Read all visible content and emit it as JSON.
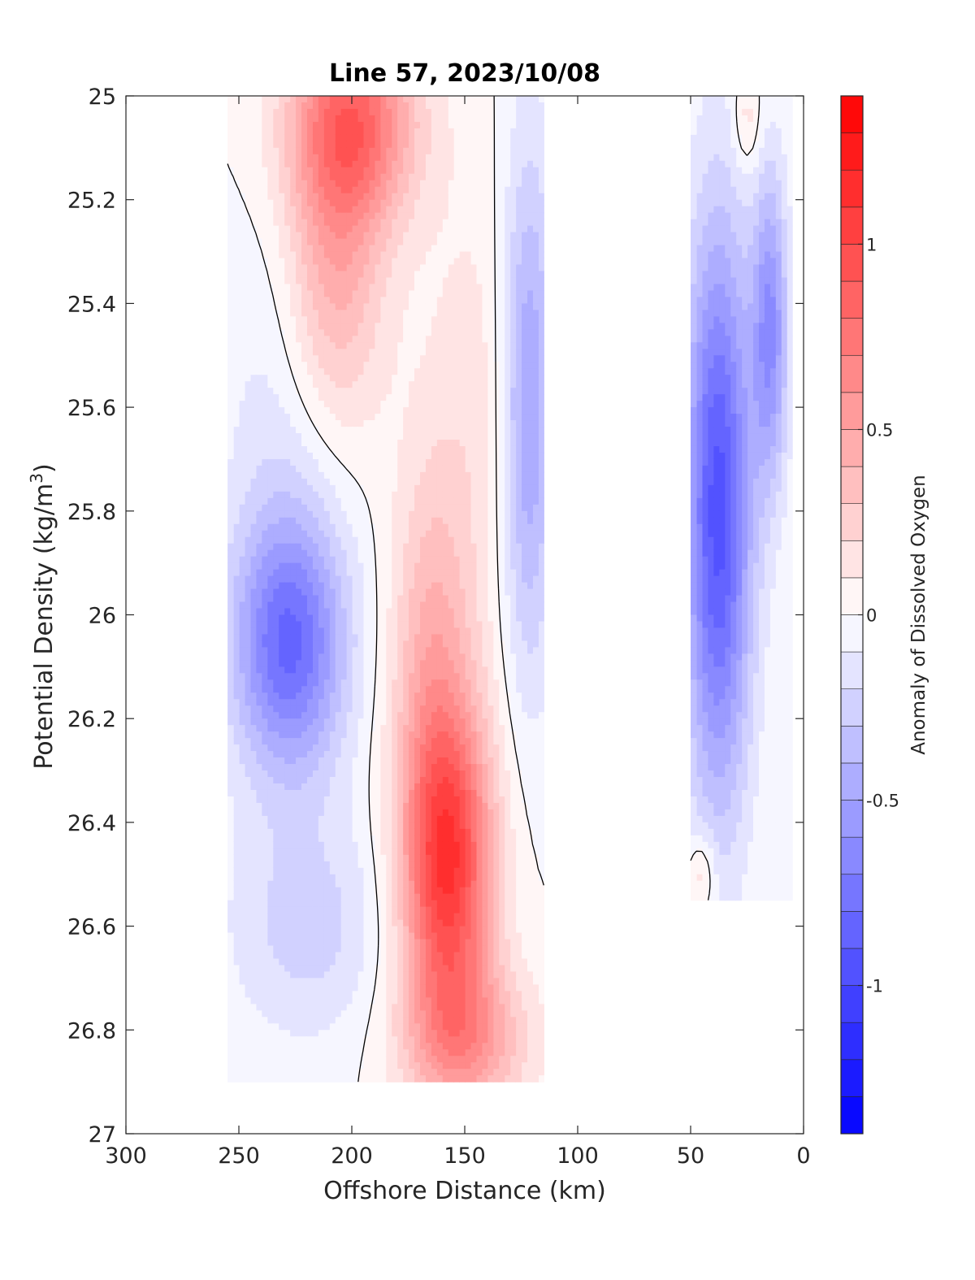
{
  "chart_data": {
    "type": "contour",
    "title": "Line 57, 2023/10/08",
    "xlabel": "Offshore Distance (km)",
    "ylabel_main": "Potential Density (kg/m",
    "ylabel_sup": "3",
    "ylabel_close": ")",
    "xlim": [
      300,
      0
    ],
    "x_reversed": true,
    "ylim": [
      25,
      27
    ],
    "y_reversed": true,
    "x_ticks": [
      300,
      250,
      200,
      150,
      100,
      50,
      0
    ],
    "x_tick_labels": [
      "300",
      "250",
      "200",
      "150",
      "100",
      "50",
      "0"
    ],
    "y_ticks": [
      25,
      25.2,
      25.4,
      25.6,
      25.8,
      26,
      26.2,
      26.4,
      26.6,
      26.8,
      27
    ],
    "y_tick_labels": [
      "25",
      "25.2",
      "25.4",
      "25.6",
      "25.8",
      "26",
      "26.2",
      "26.4",
      "26.6",
      "26.8",
      "27"
    ],
    "colorbar": {
      "label": "Anomaly of Dissolved Oxygen",
      "range": [
        -1.4,
        1.4
      ],
      "ticks": [
        -1,
        -0.5,
        0,
        0.5,
        1
      ],
      "tick_labels": [
        "-1",
        "-0.5",
        "0",
        "0.5",
        "1"
      ],
      "levels": 28,
      "colormap": "blue-white-red",
      "color_min": "#0000ff",
      "color_mid": "#ffffff",
      "color_max": "#ff0000"
    },
    "zero_contour_color": "#000000",
    "data_columns": [
      {
        "x_range": [
          115,
          255
        ],
        "y_range": [
          25,
          26.9
        ]
      },
      {
        "x_range": [
          5,
          50
        ],
        "y_range": [
          25,
          26.55
        ]
      }
    ],
    "features": [
      {
        "kind": "max",
        "x": 200,
        "y": 25.05,
        "value": 0.8,
        "rx": 28,
        "ry": 0.2
      },
      {
        "kind": "max",
        "x": 208,
        "y": 25.35,
        "value": 0.45,
        "rx": 22,
        "ry": 0.3
      },
      {
        "kind": "max",
        "x": 158,
        "y": 26.48,
        "value": 1.1,
        "rx": 20,
        "ry": 0.3
      },
      {
        "kind": "max",
        "x": 165,
        "y": 26.05,
        "value": 0.35,
        "rx": 18,
        "ry": 0.35
      },
      {
        "kind": "max",
        "x": 145,
        "y": 25.6,
        "value": 0.15,
        "rx": 25,
        "ry": 0.45
      },
      {
        "kind": "max",
        "x": 150,
        "y": 26.82,
        "value": 0.5,
        "rx": 28,
        "ry": 0.15
      },
      {
        "kind": "max",
        "x": 25,
        "y": 25.05,
        "value": 0.2,
        "rx": 6,
        "ry": 0.1
      },
      {
        "kind": "max",
        "x": 45,
        "y": 26.5,
        "value": 0.25,
        "rx": 6,
        "ry": 0.08
      },
      {
        "kind": "min",
        "x": 228,
        "y": 26.06,
        "value": -0.8,
        "rx": 25,
        "ry": 0.25
      },
      {
        "kind": "min",
        "x": 230,
        "y": 25.6,
        "value": -0.15,
        "rx": 28,
        "ry": 0.4
      },
      {
        "kind": "min",
        "x": 220,
        "y": 26.6,
        "value": -0.25,
        "rx": 35,
        "ry": 0.22
      },
      {
        "kind": "min",
        "x": 122,
        "y": 25.6,
        "value": -0.55,
        "rx": 12,
        "ry": 0.5
      },
      {
        "kind": "min",
        "x": 38,
        "y": 25.8,
        "value": -0.95,
        "rx": 15,
        "ry": 0.55
      },
      {
        "kind": "min",
        "x": 15,
        "y": 25.45,
        "value": -0.6,
        "rx": 8,
        "ry": 0.3
      }
    ]
  }
}
